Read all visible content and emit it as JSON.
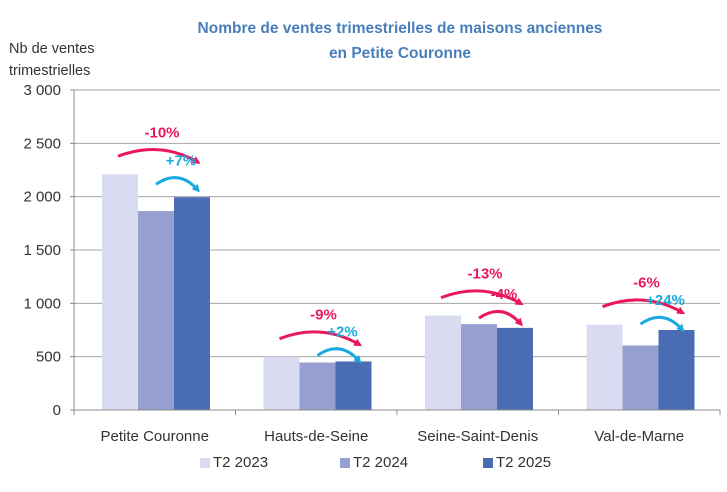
{
  "chart_data": {
    "type": "bar",
    "title": "Nombre de ventes trimestrielles de maisons anciennes en Petite Couronne",
    "title_lines": [
      "Nombre de ventes trimestrielles de maisons anciennes",
      "en Petite Couronne"
    ],
    "ylabel": "Nb de ventes trimestrielles",
    "ylabel_lines": [
      "Nb de ventes",
      "trimestrielles"
    ],
    "xlabel": "",
    "ylim": [
      0,
      3000
    ],
    "yticks": [
      0,
      500,
      1000,
      1500,
      2000,
      2500,
      3000
    ],
    "ytick_labels": [
      "0",
      "500",
      "1 000",
      "1 500",
      "2 000",
      "2 500",
      "3 000"
    ],
    "grid": true,
    "legend_position": "bottom",
    "categories": [
      "Petite Couronne",
      "Hauts-de-Seine",
      "Seine-Saint-Denis",
      "Val-de-Marne"
    ],
    "series": [
      {
        "name": "T2 2023",
        "color": "#D9DCF0",
        "values": [
          2210,
          500,
          885,
          800
        ]
      },
      {
        "name": "T2 2024",
        "color": "#959FD1",
        "values": [
          1865,
          445,
          805,
          605
        ]
      },
      {
        "name": "T2 2025",
        "color": "#4A6CB3",
        "values": [
          1995,
          455,
          770,
          750
        ]
      }
    ],
    "annotations": [
      {
        "category": "Petite Couronne",
        "from": "T2 2023",
        "to": "T2 2025",
        "label": "-10%",
        "color": "#E8185A"
      },
      {
        "category": "Petite Couronne",
        "from": "T2 2024",
        "to": "T2 2025",
        "label": "+7%",
        "color": "#1BA9E0"
      },
      {
        "category": "Hauts-de-Seine",
        "from": "T2 2023",
        "to": "T2 2025",
        "label": "-9%",
        "color": "#E8185A"
      },
      {
        "category": "Hauts-de-Seine",
        "from": "T2 2024",
        "to": "T2 2025",
        "label": "+2%",
        "color": "#1BA9E0"
      },
      {
        "category": "Seine-Saint-Denis",
        "from": "T2 2023",
        "to": "T2 2025",
        "label": "-13%",
        "color": "#E8185A"
      },
      {
        "category": "Seine-Saint-Denis",
        "from": "T2 2024",
        "to": "T2 2025",
        "label": "-4%",
        "color": "#E8185A"
      },
      {
        "category": "Val-de-Marne",
        "from": "T2 2023",
        "to": "T2 2025",
        "label": "-6%",
        "color": "#E8185A"
      },
      {
        "category": "Val-de-Marne",
        "from": "T2 2024",
        "to": "T2 2025",
        "label": "+24%",
        "color": "#1BA9E0"
      }
    ]
  },
  "colors": {
    "title": "#4A7EBB",
    "decrease": "#E8185A",
    "increase": "#1BA9E0"
  }
}
